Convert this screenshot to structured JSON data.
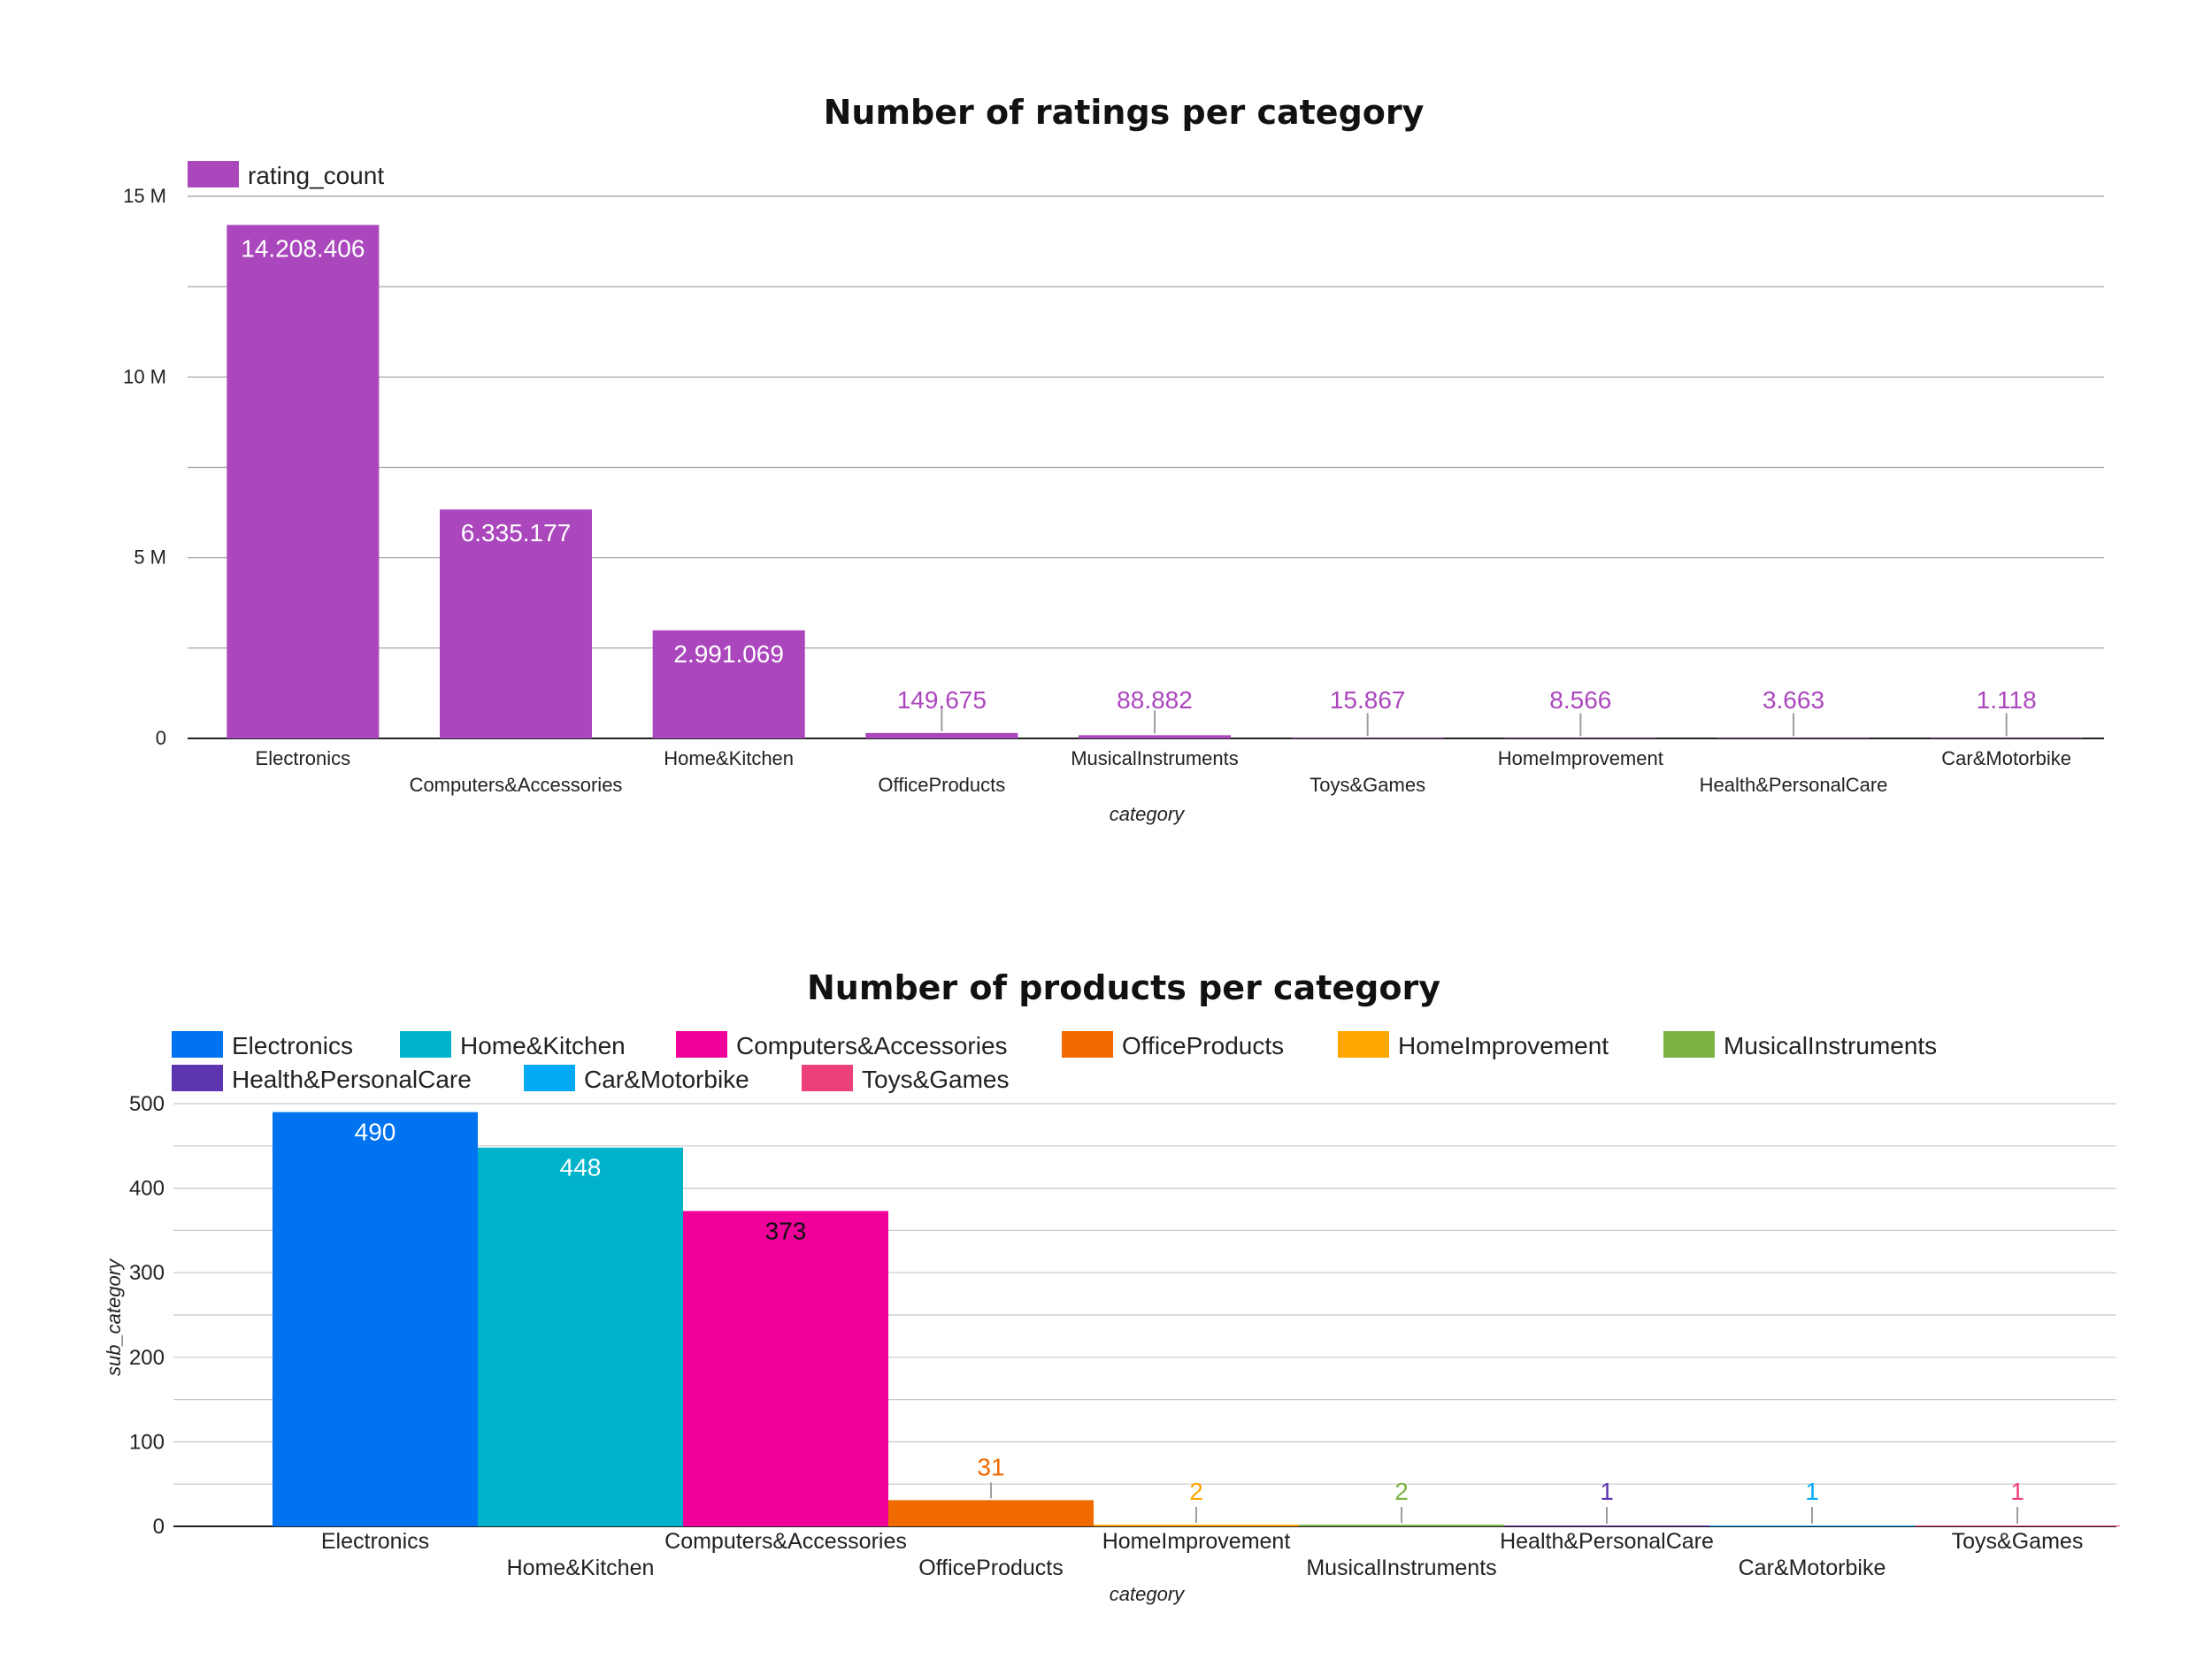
{
  "chart_data": [
    {
      "type": "bar",
      "title": "Number of ratings per category",
      "xlabel": "category",
      "ylabel": "",
      "ylim": [
        0,
        15000000
      ],
      "yticks": [
        {
          "value": 0,
          "label": "0"
        },
        {
          "value": 5000000,
          "label": "5 M"
        },
        {
          "value": 10000000,
          "label": "10 M"
        },
        {
          "value": 15000000,
          "label": "15 M"
        }
      ],
      "legend_position": "top-left",
      "color": "#AB47BC",
      "categories": [
        "Electronics",
        "Computers&Accessories",
        "Home&Kitchen",
        "OfficeProducts",
        "MusicalInstruments",
        "Toys&Games",
        "HomeImprovement",
        "Health&PersonalCare",
        "Car&Motorbike"
      ],
      "series": [
        {
          "name": "rating_count",
          "values": [
            14208406,
            6335177,
            2991069,
            149675,
            88882,
            15867,
            8566,
            3663,
            1118
          ],
          "labels": [
            "14.208.406",
            "6.335.177",
            "2.991.069",
            "149.675",
            "88.882",
            "15.867",
            "8.566",
            "3.663",
            "1.118"
          ]
        }
      ]
    },
    {
      "type": "bar",
      "title": "Number of products per category",
      "xlabel": "category",
      "ylabel": "sub_category",
      "ylim": [
        0,
        500
      ],
      "yticks": [
        {
          "value": 0,
          "label": "0"
        },
        {
          "value": 100,
          "label": "100"
        },
        {
          "value": 200,
          "label": "200"
        },
        {
          "value": 300,
          "label": "300"
        },
        {
          "value": 400,
          "label": "400"
        },
        {
          "value": 500,
          "label": "500"
        }
      ],
      "legend_position": "top-left",
      "categories": [
        "Electronics",
        "Home&Kitchen",
        "Computers&Accessories",
        "OfficeProducts",
        "HomeImprovement",
        "MusicalInstruments",
        "Health&PersonalCare",
        "Car&Motorbike",
        "Toys&Games"
      ],
      "series": [
        {
          "name": "Electronics",
          "value": 490,
          "label": "490",
          "color": "#0073F0",
          "label_color": "#FFFFFF"
        },
        {
          "name": "Home&Kitchen",
          "value": 448,
          "label": "448",
          "color": "#00B3CA",
          "label_color": "#FFFFFF"
        },
        {
          "name": "Computers&Accessories",
          "value": 373,
          "label": "373",
          "color": "#F0009A",
          "label_color": "#111111"
        },
        {
          "name": "OfficeProducts",
          "value": 31,
          "label": "31",
          "color": "#F06A00",
          "label_color": "#F06A00"
        },
        {
          "name": "HomeImprovement",
          "value": 2,
          "label": "2",
          "color": "#FFA600",
          "label_color": "#FFA600"
        },
        {
          "name": "MusicalInstruments",
          "value": 2,
          "label": "2",
          "color": "#7CB342",
          "label_color": "#7CB342"
        },
        {
          "name": "Health&PersonalCare",
          "value": 1,
          "label": "1",
          "color": "#5E35B1",
          "label_color": "#5E35B1"
        },
        {
          "name": "Car&Motorbike",
          "value": 1,
          "label": "1",
          "color": "#03A9F4",
          "label_color": "#03A9F4"
        },
        {
          "name": "Toys&Games",
          "value": 1,
          "label": "1",
          "color": "#EC407A",
          "label_color": "#EC407A"
        }
      ]
    }
  ]
}
